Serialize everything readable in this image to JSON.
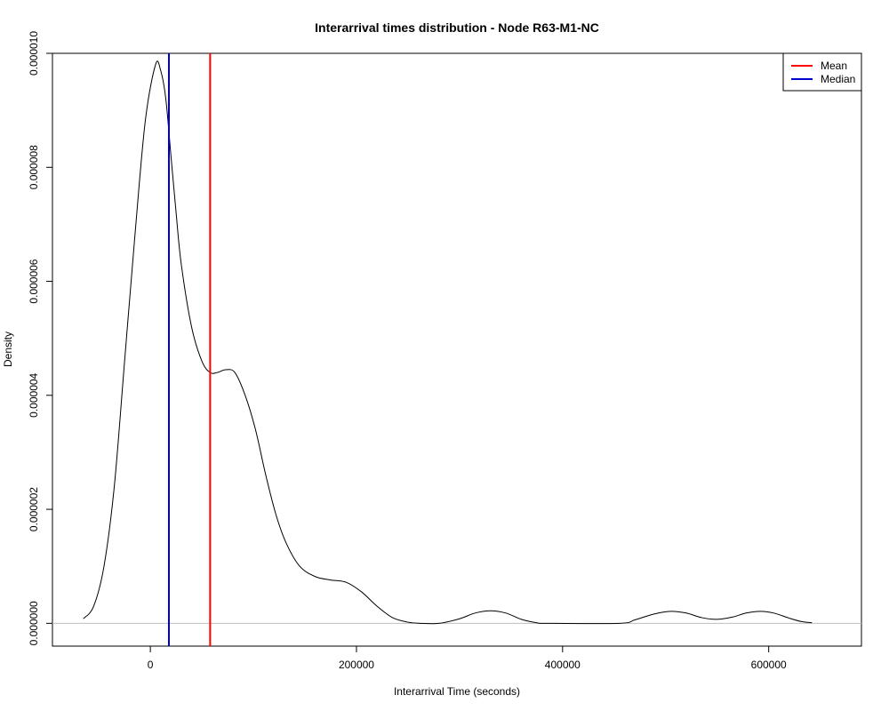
{
  "chart_data": {
    "type": "line",
    "title": "Interarrival times distribution - Node R63-M1-NC",
    "xlabel": "Interarrival Time (seconds)",
    "ylabel": "Density",
    "xlim": [
      -95000,
      690000
    ],
    "ylim": [
      -4e-07,
      1e-05
    ],
    "x_ticks": [
      {
        "value": 0,
        "label": "0"
      },
      {
        "value": 200000,
        "label": "200000"
      },
      {
        "value": 400000,
        "label": "400000"
      },
      {
        "value": 600000,
        "label": "600000"
      }
    ],
    "y_ticks": [
      {
        "value": 0,
        "label": "0.000000"
      },
      {
        "value": 2e-06,
        "label": "0.000002"
      },
      {
        "value": 4e-06,
        "label": "0.000004"
      },
      {
        "value": 6e-06,
        "label": "0.000006"
      },
      {
        "value": 8e-06,
        "label": "0.000008"
      },
      {
        "value": 1e-05,
        "label": "0.000010"
      }
    ],
    "grid": false,
    "legend_position": "top-right",
    "series": [
      {
        "name": "Density",
        "color": "#000000",
        "points": [
          [
            -65000,
            8e-08
          ],
          [
            -55000,
            3e-07
          ],
          [
            -45000,
            1e-06
          ],
          [
            -35000,
            2.4e-06
          ],
          [
            -25000,
            4.6e-06
          ],
          [
            -15000,
            6.8e-06
          ],
          [
            -5000,
            8.8e-06
          ],
          [
            5000,
            9.8e-06
          ],
          [
            10000,
            9.7e-06
          ],
          [
            15000,
            9.2e-06
          ],
          [
            20000,
            8.2e-06
          ],
          [
            25000,
            7.2e-06
          ],
          [
            30000,
            6.3e-06
          ],
          [
            40000,
            5.2e-06
          ],
          [
            50000,
            4.6e-06
          ],
          [
            58000,
            4.4e-06
          ],
          [
            65000,
            4.4e-06
          ],
          [
            73000,
            4.45e-06
          ],
          [
            82000,
            4.4e-06
          ],
          [
            92000,
            4e-06
          ],
          [
            102000,
            3.4e-06
          ],
          [
            112000,
            2.6e-06
          ],
          [
            122000,
            1.9e-06
          ],
          [
            132000,
            1.4e-06
          ],
          [
            145000,
            1e-06
          ],
          [
            160000,
            8.2e-07
          ],
          [
            175000,
            7.6e-07
          ],
          [
            190000,
            7.2e-07
          ],
          [
            205000,
            5.5e-07
          ],
          [
            220000,
            3e-07
          ],
          [
            235000,
            1e-07
          ],
          [
            250000,
            2e-08
          ],
          [
            262000,
            0.0
          ],
          [
            280000,
            0.0
          ],
          [
            300000,
            8e-08
          ],
          [
            315000,
            1.8e-07
          ],
          [
            330000,
            2.2e-07
          ],
          [
            345000,
            1.8e-07
          ],
          [
            360000,
            7e-08
          ],
          [
            375000,
            1e-08
          ],
          [
            385000,
            0.0
          ],
          [
            455000,
            0.0
          ],
          [
            470000,
            6e-08
          ],
          [
            488000,
            1.6e-07
          ],
          [
            505000,
            2.1e-07
          ],
          [
            520000,
            1.8e-07
          ],
          [
            535000,
            1e-07
          ],
          [
            550000,
            7e-08
          ],
          [
            565000,
            1.1e-07
          ],
          [
            578000,
            1.8e-07
          ],
          [
            592000,
            2.1e-07
          ],
          [
            605000,
            1.8e-07
          ],
          [
            620000,
            9e-08
          ],
          [
            632000,
            3e-08
          ],
          [
            642000,
            1e-08
          ]
        ]
      }
    ],
    "vlines": [
      {
        "name": "Mean",
        "x": 58000,
        "color": "#ff0000"
      },
      {
        "name": "Median",
        "x": 18000,
        "color": "#0000cc"
      }
    ],
    "hline": {
      "y": 0,
      "color": "#bebebe"
    },
    "legend": [
      {
        "label": "Mean",
        "color": "#ff0000"
      },
      {
        "label": "Median",
        "color": "#0000cc"
      }
    ]
  }
}
